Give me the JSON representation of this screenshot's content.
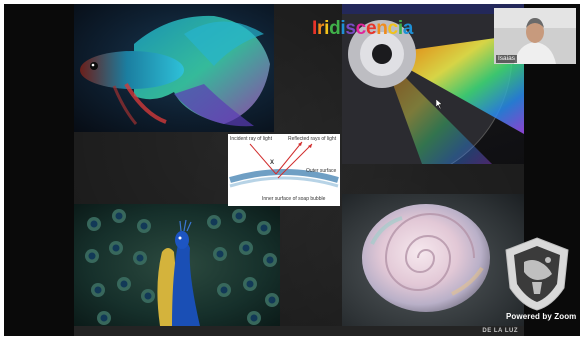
{
  "slide": {
    "title_parts": [
      "I",
      "r",
      "i",
      "d",
      "i",
      "s",
      "c",
      "e",
      "n",
      "c",
      "i",
      "a"
    ],
    "bottom_text": "DE LA LUZ",
    "diagram": {
      "incident_label": "Incident ray of light",
      "reflected_label": "Reflected rays of light",
      "outer_label": "Outer surface",
      "inner_label": "Inner surface of soap bubble",
      "point_label": "X"
    }
  },
  "participant": {
    "name": "Isaias"
  },
  "branding": {
    "powered_by": "Powered by Zoom"
  },
  "colors": {
    "frame_bg": "#0a0a0a",
    "slide_bg": "#1a1a1a",
    "title_palette": [
      "#e8332a",
      "#f08b1c",
      "#f1c21b",
      "#40b14a",
      "#1e90d6",
      "#7a4bc6",
      "#e0259a"
    ]
  },
  "icons": {
    "cursor": "pointer-cursor-icon",
    "logo": "unam-crest-icon"
  }
}
